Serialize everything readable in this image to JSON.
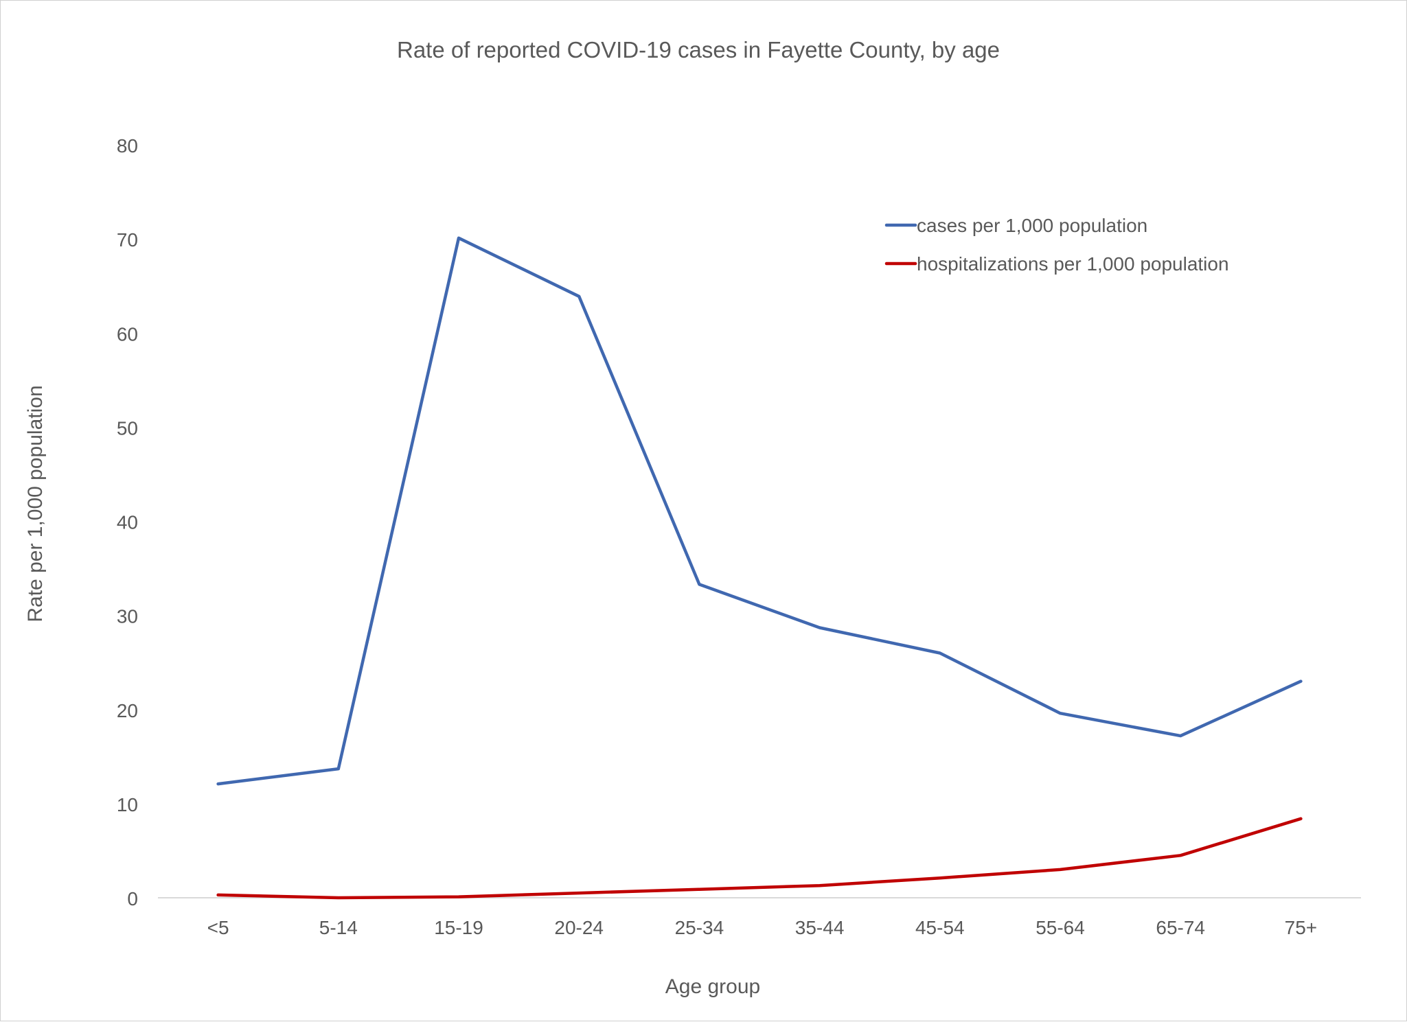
{
  "chart_data": {
    "type": "line",
    "title": "Rate of reported COVID-19 cases in Fayette County, by age",
    "xlabel": "Age group",
    "ylabel": "Rate per 1,000 population",
    "categories": [
      "<5",
      "5-14",
      "15-19",
      "20-24",
      "25-34",
      "35-44",
      "45-54",
      "55-64",
      "65-74",
      "75+"
    ],
    "ylim": [
      0,
      80
    ],
    "yticks": [
      0,
      10,
      20,
      30,
      40,
      50,
      60,
      70,
      80
    ],
    "ytick_labels": [
      "0",
      "10",
      "20",
      "30",
      "40",
      "50",
      "60",
      "70",
      "80"
    ],
    "grid": false,
    "legend_position": "top-right",
    "series": [
      {
        "name": "cases per 1,000 population",
        "color": "#4068b0",
        "values": [
          12.1,
          13.7,
          70.1,
          63.9,
          33.3,
          28.7,
          26.0,
          19.6,
          17.2,
          23.0
        ]
      },
      {
        "name": "hospitalizations per 1,000 population",
        "color": "#c00000",
        "values": [
          0.3,
          0.0,
          0.1,
          0.5,
          0.9,
          1.3,
          2.1,
          3.0,
          4.5,
          8.4
        ]
      }
    ],
    "axis_color": "#d9d9d9",
    "text_color": "#595959"
  }
}
